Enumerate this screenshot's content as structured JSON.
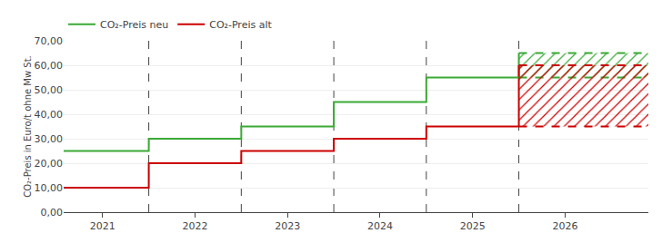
{
  "chart_data": {
    "type": "step",
    "x": [
      2020.58,
      2021.5,
      2022.5,
      2023.5,
      2024.5,
      2025.5
    ],
    "series": [
      {
        "name": "CO₂-Preis neu",
        "color": "#3aaa35",
        "values": [
          25,
          30,
          35,
          45,
          55,
          55
        ],
        "corridor": {
          "x_start": 2025.5,
          "x_end": 2026.9,
          "y_low": 55,
          "y_high": 65
        }
      },
      {
        "name": "CO₂-Preis alt",
        "color": "#cc0000",
        "values": [
          10,
          20,
          25,
          30,
          35,
          35
        ],
        "corridor": {
          "x_start": 2025.5,
          "x_end": 2026.9,
          "y_low": 35,
          "y_high": 60
        }
      }
    ],
    "vlines": [
      2021.5,
      2022.5,
      2023.5,
      2024.5,
      2025.5
    ],
    "xlim": [
      2020.58,
      2026.9
    ],
    "xticks": [
      2021,
      2022,
      2023,
      2024,
      2025,
      2026
    ],
    "ylim": [
      0,
      70
    ],
    "yticks": [
      {
        "value": 0,
        "label": "0,00"
      },
      {
        "value": 10,
        "label": "10,00"
      },
      {
        "value": 20,
        "label": "20,00"
      },
      {
        "value": 30,
        "label": "30,00"
      },
      {
        "value": 40,
        "label": "40,00"
      },
      {
        "value": 50,
        "label": "50,00"
      },
      {
        "value": 60,
        "label": "60,00"
      },
      {
        "value": 70,
        "label": "70,00"
      }
    ],
    "ylabel": "CO₂-Preis in Euro/t ohne Mw St.",
    "grid": "y",
    "legend": "top"
  }
}
